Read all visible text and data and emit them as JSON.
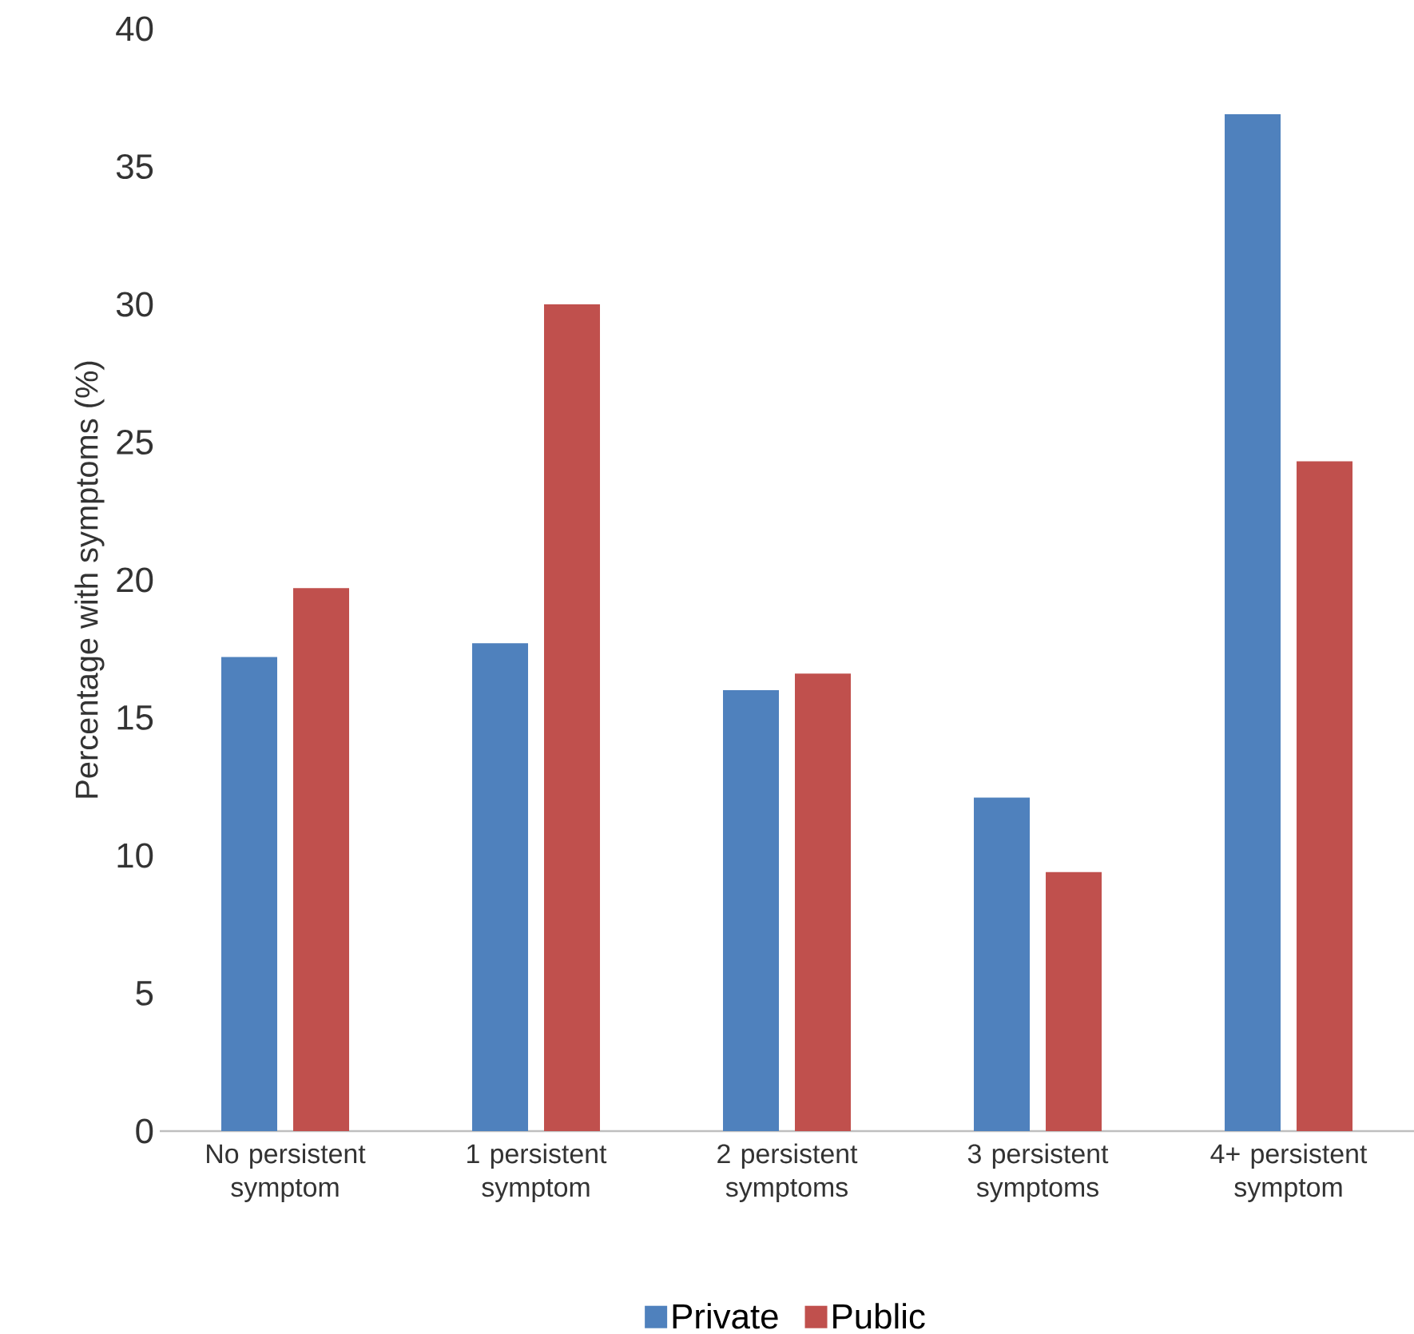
{
  "chart_data": {
    "type": "bar",
    "ylabel": "Percentage with symptoms (%)",
    "categories": [
      "No persistent symptom",
      "1 persistent symptom",
      "2 persistent symptoms",
      "3 persistent symptoms",
      "4+ persistent symptom"
    ],
    "series": [
      {
        "name": "Private",
        "color": "#4f81bd",
        "values": [
          17.2,
          17.7,
          16.0,
          12.1,
          36.9
        ]
      },
      {
        "name": "Public",
        "color": "#c0504d",
        "values": [
          19.7,
          30.0,
          16.6,
          9.4,
          24.3
        ]
      }
    ],
    "ylim": [
      0,
      40
    ],
    "yticks": [
      0,
      5,
      10,
      15,
      20,
      25,
      30,
      35,
      40
    ],
    "grid": false,
    "legend": "bottom"
  }
}
